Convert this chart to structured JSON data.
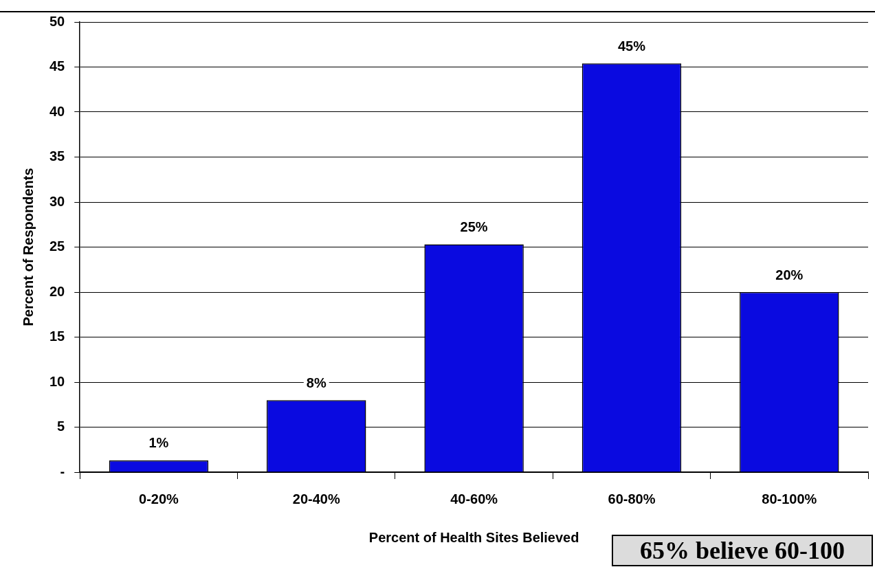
{
  "chart_data": {
    "type": "bar",
    "xlabel": "Percent of Health Sites Believed",
    "ylabel": "Percent of Respondents",
    "categories": [
      "0-20%",
      "20-40%",
      "40-60%",
      "60-80%",
      "80-100%"
    ],
    "values": [
      1.3,
      8,
      25.3,
      45.4,
      20
    ],
    "value_labels": [
      "1%",
      "8%",
      "25%",
      "45%",
      "20%"
    ],
    "color": "#0a0ae0",
    "ylim": [
      0,
      50
    ],
    "yticks": [
      {
        "value": 0,
        "label": "-"
      },
      5,
      10,
      15,
      20,
      25,
      30,
      35,
      40,
      45,
      50
    ],
    "grid": "y",
    "legend": false,
    "annotations": [
      "65% believe 60-100"
    ]
  }
}
